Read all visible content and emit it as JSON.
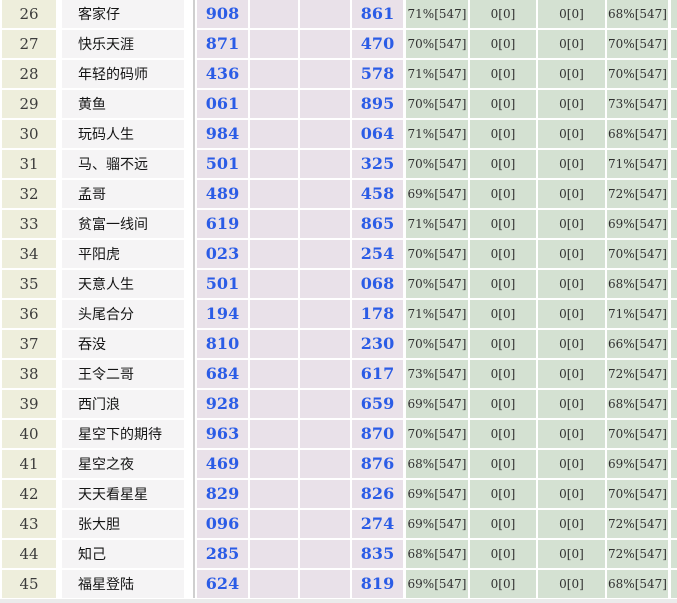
{
  "colors": {
    "row_number_bg": "#eeeedc",
    "name_bg": "#f5f4f5",
    "pick_bg": "#e9e1e9",
    "stat_bg": "#d4e1d2",
    "pick_text": "#2b5ce6",
    "divider": "#cfcfcf",
    "bottom_strip": "#ebebeb"
  },
  "table": {
    "rows": [
      {
        "num": "26",
        "name": "客家仔",
        "pick_a": "908",
        "pick_b": "861",
        "stat_1": "71%[547]",
        "stat_2": "0[0]",
        "stat_3": "0[0]",
        "stat_4": "68%[547]"
      },
      {
        "num": "27",
        "name": "快乐天涯",
        "pick_a": "871",
        "pick_b": "470",
        "stat_1": "70%[547]",
        "stat_2": "0[0]",
        "stat_3": "0[0]",
        "stat_4": "70%[547]"
      },
      {
        "num": "28",
        "name": "年轻的码师",
        "pick_a": "436",
        "pick_b": "578",
        "stat_1": "71%[547]",
        "stat_2": "0[0]",
        "stat_3": "0[0]",
        "stat_4": "70%[547]"
      },
      {
        "num": "29",
        "name": "黄鱼",
        "pick_a": "061",
        "pick_b": "895",
        "stat_1": "70%[547]",
        "stat_2": "0[0]",
        "stat_3": "0[0]",
        "stat_4": "73%[547]"
      },
      {
        "num": "30",
        "name": "玩码人生",
        "pick_a": "984",
        "pick_b": "064",
        "stat_1": "71%[547]",
        "stat_2": "0[0]",
        "stat_3": "0[0]",
        "stat_4": "68%[547]"
      },
      {
        "num": "31",
        "name": "马、骝不远",
        "pick_a": "501",
        "pick_b": "325",
        "stat_1": "70%[547]",
        "stat_2": "0[0]",
        "stat_3": "0[0]",
        "stat_4": "71%[547]"
      },
      {
        "num": "32",
        "name": "孟哥",
        "pick_a": "489",
        "pick_b": "458",
        "stat_1": "69%[547]",
        "stat_2": "0[0]",
        "stat_3": "0[0]",
        "stat_4": "72%[547]"
      },
      {
        "num": "33",
        "name": "贫富一线间",
        "pick_a": "619",
        "pick_b": "865",
        "stat_1": "71%[547]",
        "stat_2": "0[0]",
        "stat_3": "0[0]",
        "stat_4": "69%[547]"
      },
      {
        "num": "34",
        "name": "平阳虎",
        "pick_a": "023",
        "pick_b": "254",
        "stat_1": "70%[547]",
        "stat_2": "0[0]",
        "stat_3": "0[0]",
        "stat_4": "70%[547]"
      },
      {
        "num": "35",
        "name": "天意人生",
        "pick_a": "501",
        "pick_b": "068",
        "stat_1": "70%[547]",
        "stat_2": "0[0]",
        "stat_3": "0[0]",
        "stat_4": "68%[547]"
      },
      {
        "num": "36",
        "name": "头尾合分",
        "pick_a": "194",
        "pick_b": "178",
        "stat_1": "71%[547]",
        "stat_2": "0[0]",
        "stat_3": "0[0]",
        "stat_4": "71%[547]"
      },
      {
        "num": "37",
        "name": "吞没",
        "pick_a": "810",
        "pick_b": "230",
        "stat_1": "70%[547]",
        "stat_2": "0[0]",
        "stat_3": "0[0]",
        "stat_4": "66%[547]"
      },
      {
        "num": "38",
        "name": "王令二哥",
        "pick_a": "684",
        "pick_b": "617",
        "stat_1": "73%[547]",
        "stat_2": "0[0]",
        "stat_3": "0[0]",
        "stat_4": "72%[547]"
      },
      {
        "num": "39",
        "name": "西门浪",
        "pick_a": "928",
        "pick_b": "659",
        "stat_1": "69%[547]",
        "stat_2": "0[0]",
        "stat_3": "0[0]",
        "stat_4": "68%[547]"
      },
      {
        "num": "40",
        "name": "星空下的期待",
        "pick_a": "963",
        "pick_b": "870",
        "stat_1": "70%[547]",
        "stat_2": "0[0]",
        "stat_3": "0[0]",
        "stat_4": "70%[547]"
      },
      {
        "num": "41",
        "name": "星空之夜",
        "pick_a": "469",
        "pick_b": "876",
        "stat_1": "68%[547]",
        "stat_2": "0[0]",
        "stat_3": "0[0]",
        "stat_4": "69%[547]"
      },
      {
        "num": "42",
        "name": "天天看星星",
        "pick_a": "829",
        "pick_b": "826",
        "stat_1": "69%[547]",
        "stat_2": "0[0]",
        "stat_3": "0[0]",
        "stat_4": "70%[547]"
      },
      {
        "num": "43",
        "name": "张大胆",
        "pick_a": "096",
        "pick_b": "274",
        "stat_1": "69%[547]",
        "stat_2": "0[0]",
        "stat_3": "0[0]",
        "stat_4": "72%[547]"
      },
      {
        "num": "44",
        "name": "知己",
        "pick_a": "285",
        "pick_b": "835",
        "stat_1": "68%[547]",
        "stat_2": "0[0]",
        "stat_3": "0[0]",
        "stat_4": "72%[547]"
      },
      {
        "num": "45",
        "name": "福星登陆",
        "pick_a": "624",
        "pick_b": "819",
        "stat_1": "69%[547]",
        "stat_2": "0[0]",
        "stat_3": "0[0]",
        "stat_4": "68%[547]"
      }
    ]
  }
}
